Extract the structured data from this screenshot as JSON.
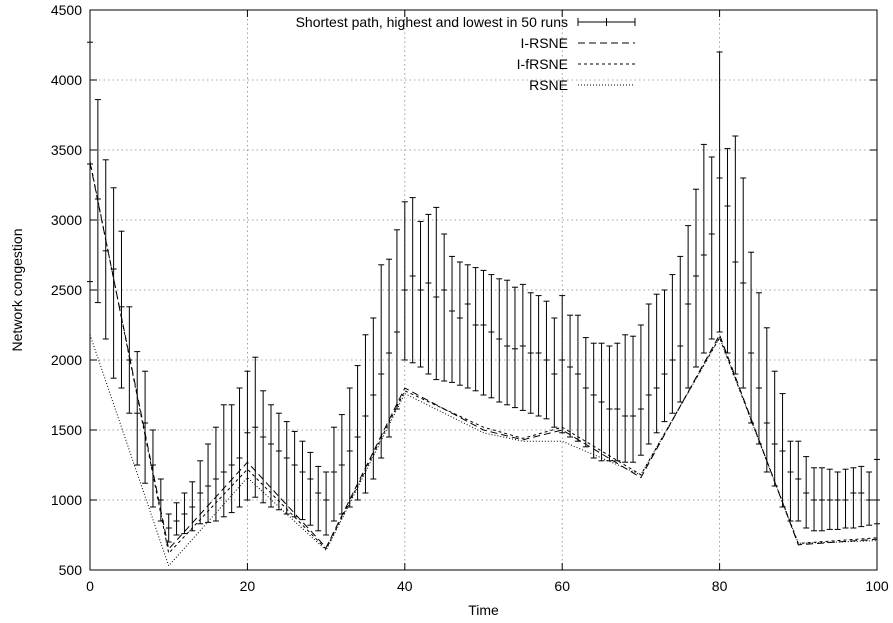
{
  "chart_data": {
    "type": "line",
    "xlabel": "Time",
    "ylabel": "Network congestion",
    "xlim": [
      0,
      100
    ],
    "ylim": [
      500,
      4500
    ],
    "xticks": [
      0,
      20,
      40,
      60,
      80,
      100
    ],
    "yticks": [
      500,
      1000,
      1500,
      2000,
      2500,
      3000,
      3500,
      4000,
      4500
    ],
    "grid": true,
    "legend_position": "top-right",
    "series": [
      {
        "name": "Shortest path, highest and lowest in 50 runs",
        "style": "errorbar",
        "x": [
          0,
          1,
          2,
          3,
          4,
          5,
          6,
          7,
          8,
          9,
          10,
          11,
          12,
          13,
          14,
          15,
          16,
          17,
          18,
          19,
          20,
          21,
          22,
          23,
          24,
          25,
          26,
          27,
          28,
          29,
          30,
          31,
          32,
          33,
          34,
          35,
          36,
          37,
          38,
          39,
          40,
          41,
          42,
          43,
          44,
          45,
          46,
          47,
          48,
          49,
          50,
          51,
          52,
          53,
          54,
          55,
          56,
          57,
          58,
          59,
          60,
          61,
          62,
          63,
          64,
          65,
          66,
          67,
          68,
          69,
          70,
          71,
          72,
          73,
          74,
          75,
          76,
          77,
          78,
          79,
          80,
          81,
          82,
          83,
          84,
          85,
          86,
          87,
          88,
          89,
          90,
          91,
          92,
          93,
          94,
          95,
          96,
          97,
          98,
          99,
          100
        ],
        "y": [
          3400,
          3150,
          2780,
          2650,
          2380,
          2000,
          1620,
          1550,
          1250,
          1000,
          800,
          850,
          900,
          950,
          1050,
          1100,
          1150,
          1200,
          1250,
          1300,
          1480,
          1520,
          1450,
          1400,
          1350,
          1300,
          1250,
          1200,
          1150,
          1050,
          1000,
          1200,
          1250,
          1350,
          1450,
          1600,
          1750,
          1900,
          2050,
          2200,
          2500,
          2600,
          2500,
          2550,
          2450,
          2500,
          2350,
          2300,
          2400,
          2250,
          2250,
          2200,
          2150,
          2100,
          2080,
          2100,
          2050,
          2050,
          2000,
          1900,
          2000,
          1950,
          1900,
          1800,
          1750,
          1700,
          1650,
          1650,
          1600,
          1600,
          1650,
          1750,
          1800,
          1900,
          2000,
          2100,
          2400,
          2600,
          2750,
          2900,
          3300,
          3100,
          2700,
          2550,
          2050,
          1800,
          1550,
          1400,
          1350,
          1200,
          1150,
          1050,
          1000,
          1000,
          1000,
          1000,
          1000,
          1050,
          1050,
          1000,
          1000
        ],
        "y_high": [
          4270,
          3860,
          3430,
          3230,
          2920,
          2380,
          2060,
          1920,
          1500,
          1150,
          900,
          980,
          1050,
          1130,
          1280,
          1400,
          1520,
          1680,
          1680,
          1800,
          1920,
          2020,
          1780,
          1680,
          1620,
          1560,
          1490,
          1420,
          1340,
          1240,
          1200,
          1520,
          1610,
          1800,
          1960,
          2180,
          2300,
          2680,
          2720,
          2930,
          3130,
          3160,
          2990,
          3040,
          3090,
          2900,
          2740,
          2700,
          2680,
          2660,
          2640,
          2610,
          2580,
          2570,
          2520,
          2540,
          2480,
          2460,
          2420,
          2300,
          2460,
          2320,
          2320,
          2160,
          2120,
          2120,
          2100,
          2120,
          2180,
          2170,
          2250,
          2400,
          2470,
          2500,
          2610,
          2740,
          2960,
          3220,
          3540,
          3450,
          4200,
          3510,
          3600,
          3300,
          2770,
          2480,
          2230,
          1920,
          1760,
          1420,
          1420,
          1310,
          1230,
          1230,
          1220,
          1200,
          1220,
          1230,
          1240,
          1200,
          1290
        ],
        "y_low": [
          2560,
          2410,
          2150,
          1870,
          1800,
          1620,
          1250,
          1120,
          950,
          850,
          700,
          750,
          760,
          780,
          830,
          840,
          850,
          880,
          910,
          950,
          1000,
          1020,
          980,
          950,
          930,
          900,
          880,
          860,
          820,
          780,
          750,
          850,
          900,
          950,
          1000,
          1050,
          1150,
          1300,
          1450,
          1650,
          2000,
          1980,
          1950,
          1900,
          1860,
          1850,
          1840,
          1820,
          1800,
          1780,
          1750,
          1730,
          1700,
          1680,
          1660,
          1640,
          1620,
          1600,
          1580,
          1520,
          1480,
          1450,
          1420,
          1380,
          1300,
          1280,
          1280,
          1280,
          1270,
          1270,
          1320,
          1400,
          1480,
          1560,
          1620,
          1700,
          1800,
          1950,
          2050,
          2150,
          2200,
          2050,
          1900,
          1800,
          1550,
          1400,
          1200,
          1100,
          950,
          850,
          850,
          800,
          780,
          780,
          790,
          790,
          800,
          800,
          810,
          820,
          830
        ]
      },
      {
        "name": "I-RSNE",
        "style": "dashed",
        "x": [
          0,
          10,
          20,
          30,
          40,
          50,
          55,
          60,
          70,
          80,
          90,
          100
        ],
        "y": [
          3410,
          650,
          1270,
          660,
          1800,
          1500,
          1430,
          1500,
          1160,
          2180,
          680,
          720
        ]
      },
      {
        "name": "I-fRSNE",
        "style": "dashed-fine",
        "x": [
          0,
          10,
          20,
          30,
          40,
          50,
          55,
          60,
          70,
          80,
          90,
          100
        ],
        "y": [
          3420,
          620,
          1220,
          650,
          1780,
          1520,
          1440,
          1520,
          1180,
          2160,
          690,
          730
        ]
      },
      {
        "name": "RSNE",
        "style": "dotted",
        "x": [
          0,
          10,
          20,
          30,
          40,
          50,
          55,
          60,
          70,
          80,
          90,
          100
        ],
        "y": [
          2180,
          530,
          1160,
          640,
          1760,
          1480,
          1420,
          1420,
          1180,
          2160,
          690,
          710
        ]
      }
    ]
  }
}
